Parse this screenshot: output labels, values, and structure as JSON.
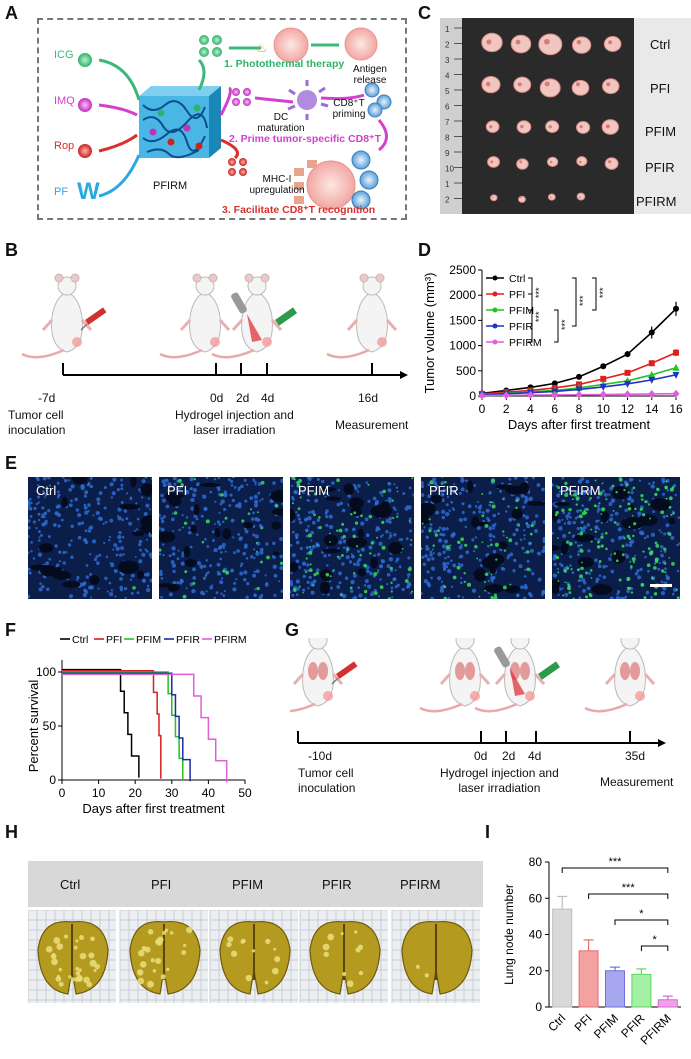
{
  "panels": {
    "A": "A",
    "B": "B",
    "C": "C",
    "D": "D",
    "E": "E",
    "F": "F",
    "G": "G",
    "H": "H",
    "I": "I"
  },
  "panelA": {
    "inputs": [
      "ICG",
      "IMQ",
      "Rop",
      "PF"
    ],
    "pf_symbol": "W",
    "hydrogel": "PFIRM",
    "dc": "DC maturation",
    "cd8_priming": "CD8⁺T priming",
    "antigen": "Antigen release",
    "mhc": "MHC-I upregulation",
    "step1": "1. Photothermal therapy",
    "step2": "2. Prime tumor-specific CD8⁺T",
    "step3": "3. Facilitate CD8⁺T recognition",
    "colors": {
      "green": "#3cb878",
      "magenta": "#d43fd0",
      "red": "#d9302a",
      "blue": "#2aa9e0"
    }
  },
  "panelB": {
    "ticks": [
      "-7d",
      "0d",
      "2d",
      "4d",
      "16d"
    ],
    "tumor_label": "Tumor cell\ninoculation",
    "hydrogel_label": "Hydrogel injection and\nlaser irradiation",
    "measure": "Measurement"
  },
  "panelC": {
    "rows": [
      "Ctrl",
      "PFI",
      "PFIM",
      "PFIR",
      "PFIRM"
    ],
    "ruler": [
      "1",
      "2",
      "3",
      "4",
      "5",
      "6",
      "7",
      "8",
      "9",
      "10",
      "1",
      "2"
    ]
  },
  "panelE": {
    "labels": [
      "Ctrl",
      "PFI",
      "PFIM",
      "PFIR",
      "PFIRM"
    ]
  },
  "panelG": {
    "ticks": [
      "-10d",
      "0d",
      "2d",
      "4d",
      "35d"
    ],
    "tumor_label": "Tumor cell\ninoculation",
    "hydrogel_label": "Hydrogel injection and\nlaser irradiation",
    "measure": "Measurement"
  },
  "panelH": {
    "labels": [
      "Ctrl",
      "PFI",
      "PFIM",
      "PFIR",
      "PFIRM"
    ]
  },
  "chart_data": [
    {
      "id": "D",
      "type": "line",
      "xlabel": "Days after first treatment",
      "ylabel": "Tumor volume (mm³)",
      "x": [
        0,
        2,
        4,
        6,
        8,
        10,
        12,
        14,
        16
      ],
      "ylim": [
        0,
        2500
      ],
      "yticks": [
        0,
        500,
        1000,
        1500,
        2000,
        2500
      ],
      "series": [
        {
          "name": "Ctrl",
          "color": "#000000",
          "marker": "circle",
          "values": [
            50,
            110,
            170,
            250,
            380,
            590,
            830,
            1260,
            1730
          ],
          "err": [
            10,
            15,
            20,
            25,
            35,
            45,
            60,
            120,
            140
          ]
        },
        {
          "name": "PFI",
          "color": "#e0201b",
          "marker": "square",
          "values": [
            40,
            75,
            110,
            160,
            230,
            340,
            460,
            650,
            860
          ],
          "err": [
            8,
            10,
            12,
            20,
            25,
            35,
            40,
            60,
            70
          ]
        },
        {
          "name": "PFIM",
          "color": "#22c322",
          "marker": "triangle",
          "values": [
            30,
            55,
            80,
            110,
            160,
            230,
            300,
            420,
            560
          ],
          "err": [
            6,
            8,
            10,
            15,
            20,
            25,
            30,
            45,
            55
          ]
        },
        {
          "name": "PFIR",
          "color": "#1f34c8",
          "marker": "triangle-down",
          "values": [
            25,
            45,
            65,
            90,
            130,
            180,
            240,
            320,
            420
          ],
          "err": [
            5,
            7,
            9,
            12,
            15,
            20,
            25,
            35,
            45
          ]
        },
        {
          "name": "PFIRM",
          "color": "#e05fd8",
          "marker": "diamond",
          "values": [
            10,
            15,
            20,
            22,
            25,
            30,
            35,
            40,
            45
          ],
          "err": [
            3,
            3,
            4,
            4,
            5,
            5,
            6,
            6,
            8
          ]
        }
      ],
      "significance": [
        "***",
        "***",
        "***",
        "***",
        "***"
      ]
    },
    {
      "id": "F",
      "type": "line",
      "xlabel": "Days after first treatment",
      "ylabel": "Percent survival",
      "xlim": [
        0,
        50
      ],
      "xticks": [
        0,
        10,
        20,
        30,
        40,
        50
      ],
      "ylim": [
        0,
        100
      ],
      "yticks": [
        0,
        50,
        100
      ],
      "series": [
        {
          "name": "Ctrl",
          "color": "#000000",
          "steps": [
            [
              0,
              100
            ],
            [
              16,
              100
            ],
            [
              16,
              80
            ],
            [
              17,
              80
            ],
            [
              17,
              60
            ],
            [
              18,
              60
            ],
            [
              18,
              40
            ],
            [
              19,
              40
            ],
            [
              19,
              20
            ],
            [
              21,
              20
            ],
            [
              21,
              0
            ]
          ]
        },
        {
          "name": "PFI",
          "color": "#d42020",
          "steps": [
            [
              0,
              100
            ],
            [
              25,
              100
            ],
            [
              25,
              80
            ],
            [
              26,
              80
            ],
            [
              26,
              60
            ],
            [
              26.5,
              60
            ],
            [
              26.5,
              40
            ],
            [
              27,
              40
            ],
            [
              27,
              0
            ]
          ]
        },
        {
          "name": "PFIM",
          "color": "#22c322",
          "steps": [
            [
              0,
              100
            ],
            [
              29,
              100
            ],
            [
              29,
              80
            ],
            [
              30,
              80
            ],
            [
              30,
              60
            ],
            [
              31,
              60
            ],
            [
              31,
              40
            ],
            [
              32,
              40
            ],
            [
              32,
              20
            ],
            [
              33,
              20
            ],
            [
              33,
              0
            ]
          ]
        },
        {
          "name": "PFIR",
          "color": "#1a2ea0",
          "steps": [
            [
              0,
              100
            ],
            [
              30,
              100
            ],
            [
              30,
              80
            ],
            [
              31,
              80
            ],
            [
              31,
              60
            ],
            [
              32,
              60
            ],
            [
              32,
              40
            ],
            [
              33,
              40
            ],
            [
              33,
              20
            ],
            [
              35,
              20
            ],
            [
              35,
              0
            ]
          ]
        },
        {
          "name": "PFIRM",
          "color": "#e05fd8",
          "steps": [
            [
              0,
              100
            ],
            [
              36,
              100
            ],
            [
              36,
              80
            ],
            [
              38,
              80
            ],
            [
              38,
              60
            ],
            [
              40,
              60
            ],
            [
              40,
              40
            ],
            [
              42,
              40
            ],
            [
              42,
              20
            ],
            [
              45,
              20
            ],
            [
              45,
              0
            ]
          ]
        }
      ]
    },
    {
      "id": "I",
      "type": "bar",
      "ylabel": "Lung node number",
      "ylim": [
        0,
        80
      ],
      "yticks": [
        0,
        20,
        40,
        60,
        80
      ],
      "categories": [
        "Ctrl",
        "PFI",
        "PFIM",
        "PFIR",
        "PFIRM"
      ],
      "values": [
        54,
        31,
        20,
        18,
        4
      ],
      "err": [
        7,
        6,
        2,
        3,
        2
      ],
      "colors": [
        "#d9d9d9",
        "#f4a1a1",
        "#a7a7ef",
        "#a4f0a4",
        "#f0a0ec"
      ],
      "edges": [
        "#bdbdbd",
        "#e86d6d",
        "#6f6fd8",
        "#5ed85e",
        "#d867d2"
      ],
      "significance": [
        "***",
        "***",
        "*",
        "*"
      ]
    }
  ]
}
